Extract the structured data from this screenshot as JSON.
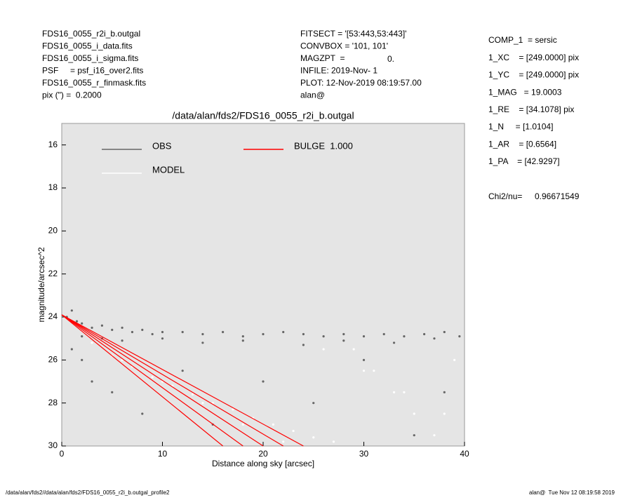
{
  "header": {
    "left": [
      "FDS16_0055_r2i_b.outgal",
      "FDS16_0055_i_data.fits",
      "FDS16_0055_i_sigma.fits",
      "PSF     = psf_i16_over2.fits",
      "FDS16_0055_r_finmask.fits",
      "pix (\") =  0.2000"
    ],
    "middle": [
      "FITSECT = '[53:443,53:443]'",
      "CONVBOX = '101, 101'",
      "MAGZPT  =",
      "INFILE: 2019-Nov- 1",
      "PLOT: 12-Nov-2019 08:19:57.00",
      "alan@"
    ],
    "magzpt_value": "0.",
    "right": [
      "COMP_1  = sersic",
      "1_XC    = [249.0000] pix",
      "1_YC    = [249.0000] pix",
      "1_MAG   = 19.0003",
      "1_RE    = [34.1078] pix",
      "1_N     = [1.0104]",
      "1_AR    = [0.6564]",
      "1_PA    = [42.9297]"
    ],
    "chi2": {
      "label": "Chi2/nu=",
      "value": "0.96671549"
    }
  },
  "footer": {
    "left": "/data/alan/fds2//data/alan/fds2/FDS16_0055_r2i_b.outgal_profile2",
    "right": "alan@  Tue Nov 12 08:19:58 2019"
  },
  "chart_data": {
    "type": "scatter",
    "title": "/data/alan/fds2/FDS16_0055_r2i_b.outgal",
    "x_label": "Distance along sky [arcsec]",
    "y_label": "magnitude/arcsec^2",
    "xlim": [
      0,
      40
    ],
    "ylim": [
      30,
      15
    ],
    "xticks": [
      0,
      10,
      20,
      30,
      40
    ],
    "yticks": [
      16,
      18,
      20,
      22,
      24,
      26,
      28,
      30
    ],
    "series": [
      {
        "name": "OBS",
        "color": "#666666",
        "x": [
          0.5,
          1,
          1.5,
          2,
          3,
          4,
          5,
          6,
          7,
          8,
          9,
          10,
          12,
          14,
          16,
          18,
          20,
          22,
          24,
          26,
          28,
          30,
          32,
          34,
          36,
          38,
          39.5,
          1,
          2,
          3,
          5,
          8,
          12,
          15,
          20,
          25,
          30,
          35,
          38,
          2,
          4,
          6,
          10,
          14,
          18,
          24,
          28,
          33,
          37
        ],
        "values": [
          24.0,
          23.7,
          24.2,
          24.3,
          24.5,
          24.4,
          24.6,
          24.5,
          24.7,
          24.6,
          24.8,
          24.7,
          24.7,
          24.8,
          24.7,
          24.9,
          24.8,
          24.7,
          24.8,
          24.9,
          24.8,
          24.9,
          24.8,
          24.9,
          24.8,
          24.7,
          24.9,
          25.5,
          26.0,
          27.0,
          27.5,
          28.5,
          26.5,
          29.0,
          27.0,
          28.0,
          26.0,
          29.5,
          27.5,
          24.9,
          25.0,
          25.1,
          25.0,
          25.2,
          25.1,
          25.3,
          25.1,
          25.2,
          25.0
        ]
      },
      {
        "name": "MODEL",
        "color": "#ffffff",
        "x": [
          3,
          5,
          7,
          9,
          11,
          13,
          15,
          17,
          19,
          21,
          23,
          25,
          27,
          29,
          31,
          33,
          35,
          37,
          39,
          6,
          10,
          14,
          18,
          22,
          26,
          30,
          34,
          38
        ],
        "values": [
          25.2,
          25.8,
          26.3,
          26.8,
          27.2,
          27.6,
          28.0,
          28.3,
          28.7,
          29.0,
          29.3,
          29.6,
          29.8,
          25.5,
          26.5,
          27.5,
          28.5,
          29.5,
          26.0,
          26.0,
          27.0,
          28.0,
          29.0,
          29.8,
          25.5,
          26.5,
          27.5,
          28.5
        ]
      },
      {
        "name": "BULGE  1.000",
        "color": "#ff0000",
        "lines": [
          {
            "x": [
              0,
              16
            ],
            "values": [
              23.9,
              30
            ]
          },
          {
            "x": [
              0,
              18
            ],
            "values": [
              23.9,
              30
            ]
          },
          {
            "x": [
              0,
              20
            ],
            "values": [
              23.9,
              30
            ]
          },
          {
            "x": [
              0,
              22
            ],
            "values": [
              23.9,
              30
            ]
          },
          {
            "x": [
              0,
              24
            ],
            "values": [
              23.9,
              30
            ]
          }
        ]
      }
    ]
  }
}
